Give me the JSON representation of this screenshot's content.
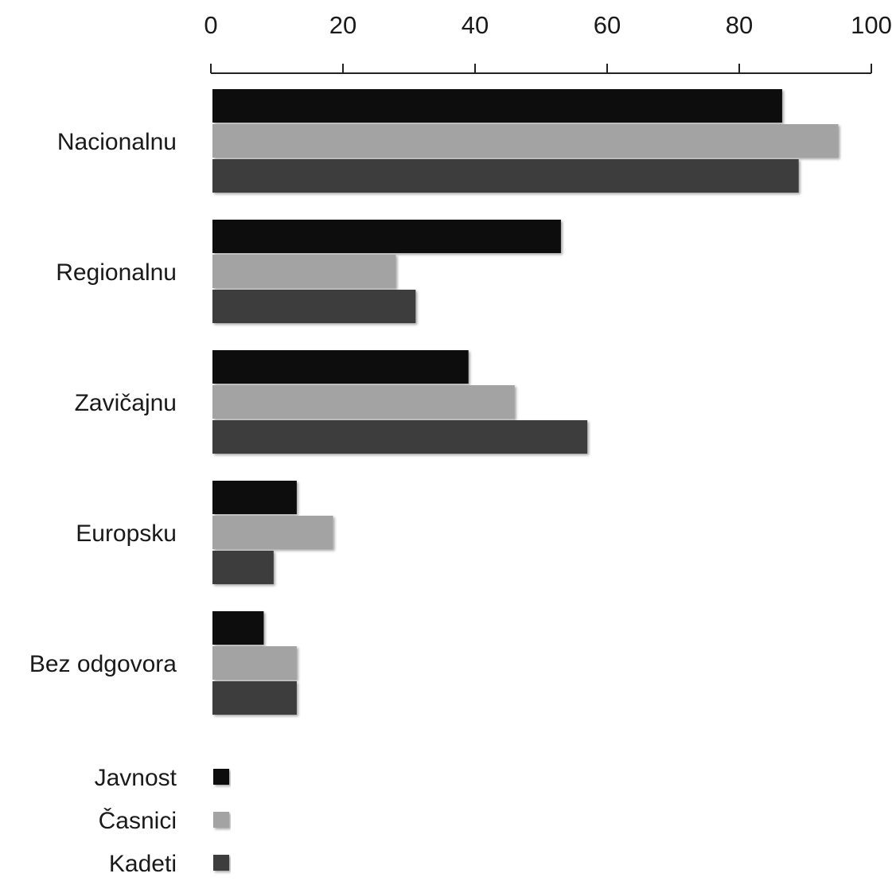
{
  "chart_data": {
    "type": "bar",
    "orientation": "horizontal",
    "title": "",
    "xlabel": "",
    "ylabel": "",
    "xlim": [
      0,
      100
    ],
    "x_ticks": [
      "0",
      "20",
      "40",
      "60",
      "80",
      "100"
    ],
    "x_axis_position": "top",
    "grid": false,
    "legend_position": "bottom-left",
    "categories": [
      "Nacionalnu",
      "Regionalnu",
      "Zavičajnu",
      "Europsku",
      "Bez odgovora"
    ],
    "series": [
      {
        "name": "Javnost",
        "color": "#111111",
        "values": [
          86.5,
          53,
          39,
          13,
          8
        ]
      },
      {
        "name": "Časnici",
        "color": "#a3a3a3",
        "values": [
          95,
          28,
          46,
          18.5,
          13
        ]
      },
      {
        "name": "Kadeti",
        "color": "#3c3c3c",
        "values": [
          89,
          31,
          57,
          9.5,
          13
        ]
      }
    ]
  }
}
